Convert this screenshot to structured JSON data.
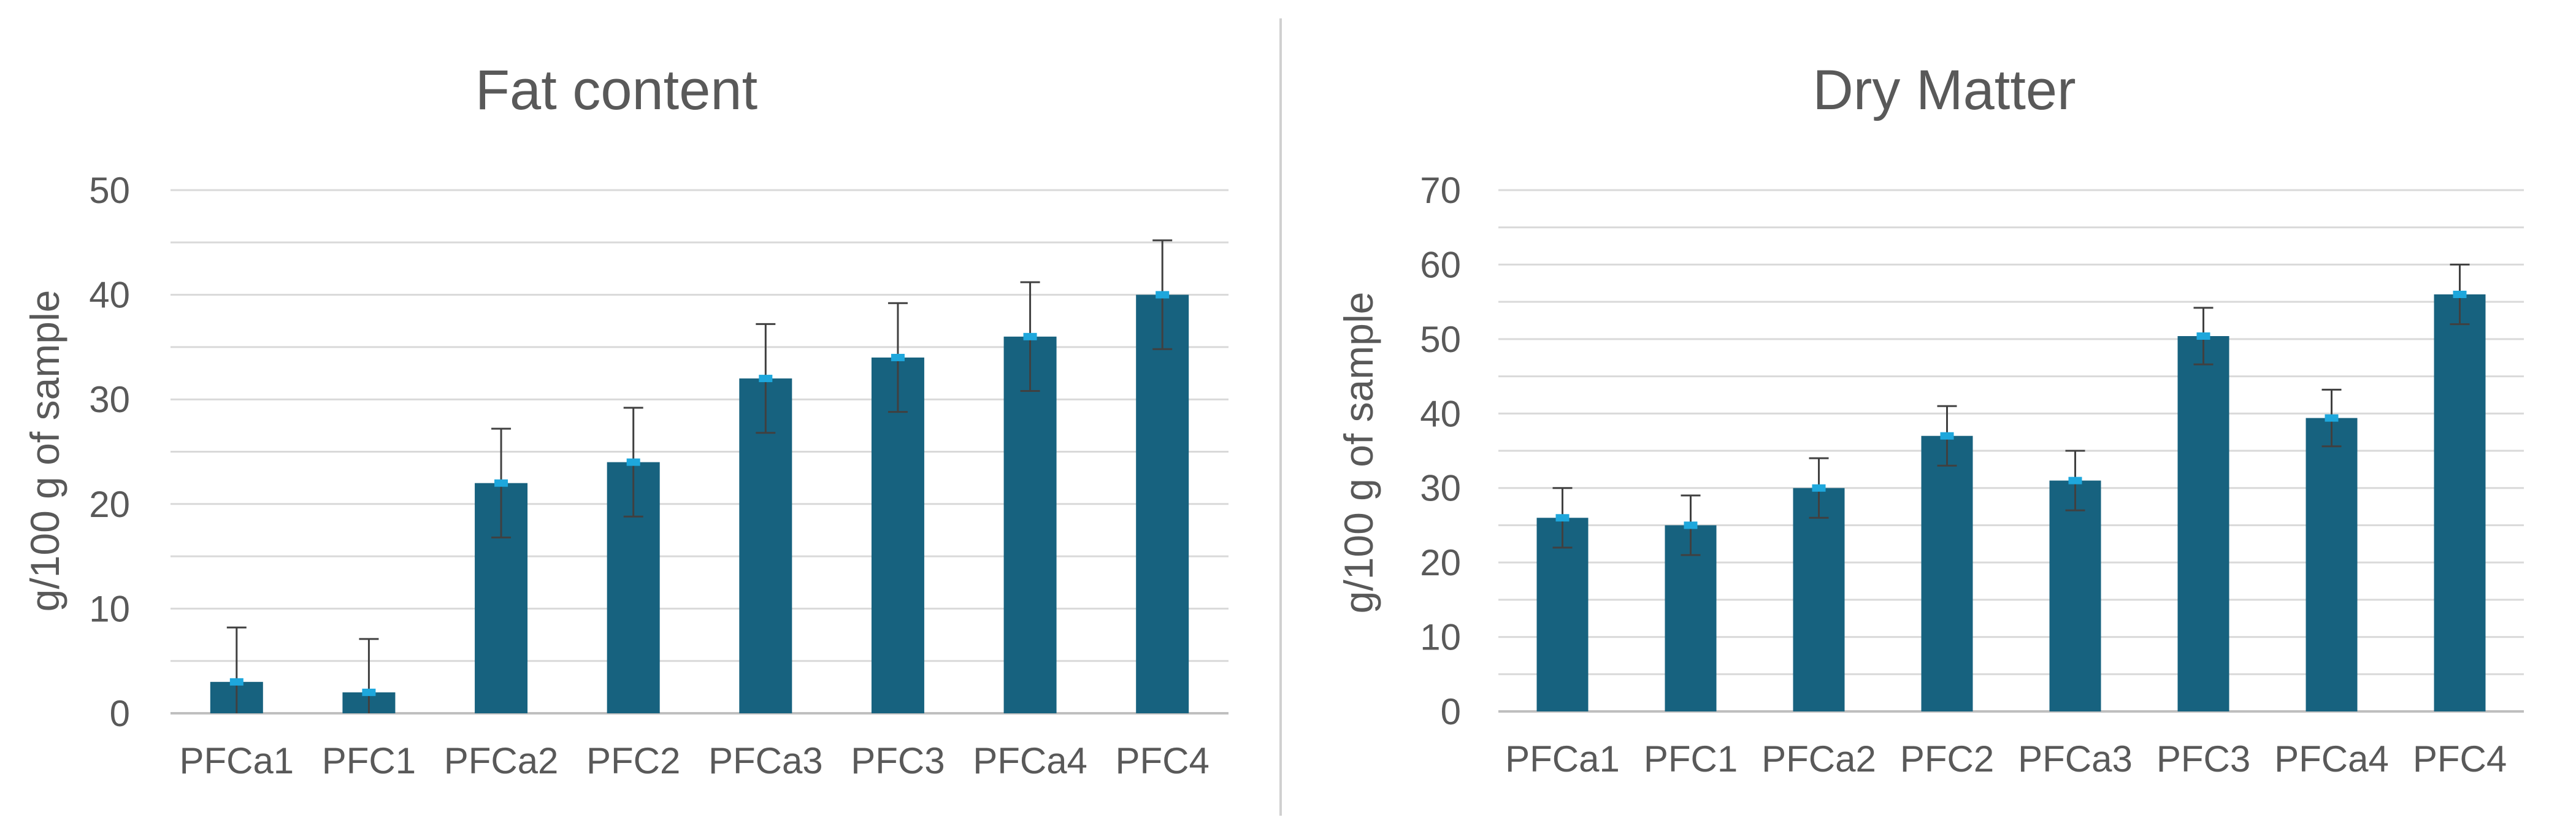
{
  "colors": {
    "bar": "#17627f",
    "marker": "#1ea7dc",
    "errorbar": "#404040",
    "grid": "#d9d9d9",
    "text": "#595959",
    "divider": "#d0d0d0"
  },
  "chart_data": [
    {
      "type": "bar",
      "title": "Fat content",
      "xlabel": "",
      "ylabel": "g/100 g of sample",
      "ylim": [
        0,
        50
      ],
      "yticks": [
        0,
        10,
        20,
        30,
        40,
        50
      ],
      "grid": true,
      "categories": [
        "PFCa1",
        "PFC1",
        "PFCa2",
        "PFC2",
        "PFCa3",
        "PFC3",
        "PFCa4",
        "PFC4"
      ],
      "values": [
        3,
        2,
        22,
        24,
        32,
        34,
        36,
        40
      ],
      "error": [
        5.2,
        5.1,
        5.2,
        5.2,
        5.2,
        5.2,
        5.2,
        5.2
      ]
    },
    {
      "type": "bar",
      "title": "Dry Matter",
      "xlabel": "",
      "ylabel": "g/100 g of sample",
      "ylim": [
        0,
        70
      ],
      "yticks": [
        0,
        10,
        20,
        30,
        40,
        50,
        60,
        70
      ],
      "grid": true,
      "categories": [
        "PFCa1",
        "PFC1",
        "PFCa2",
        "PFC2",
        "PFCa3",
        "PFC3",
        "PFCa4",
        "PFC4"
      ],
      "values": [
        26,
        25,
        30,
        37,
        31,
        50.4,
        39.4,
        56
      ],
      "error": [
        4,
        4,
        4,
        4,
        4,
        3.8,
        3.8,
        4
      ]
    }
  ]
}
